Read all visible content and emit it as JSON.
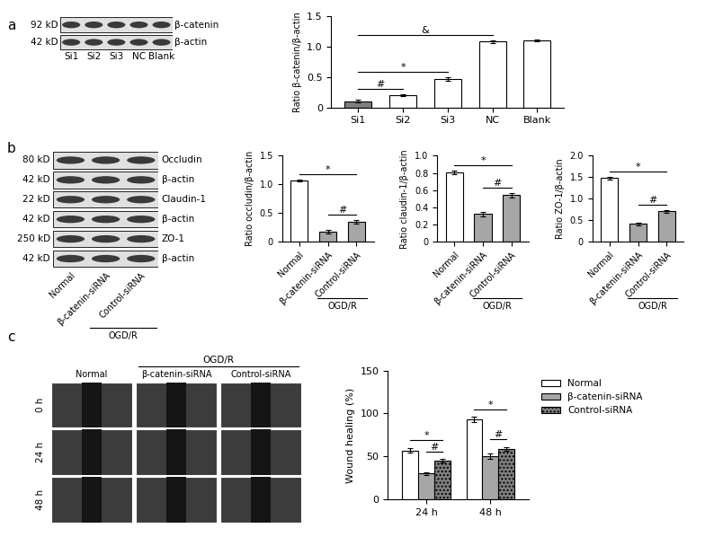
{
  "panel_labels": [
    "a",
    "b",
    "c"
  ],
  "blots": [
    {
      "lanes": [
        "Si1",
        "Si2",
        "Si3",
        "NC",
        "Blank"
      ],
      "rows": [
        {
          "size": "92 kD",
          "name": "β-catenin"
        },
        {
          "size": "42 kD",
          "name": "β-actin"
        }
      ]
    },
    {
      "lanes": [
        "Normal",
        "β-catenin-siRNA",
        "Control-siRNA"
      ],
      "group_label": {
        "text": "OGD/R",
        "lanes": [
          "β-catenin-siRNA",
          "Control-siRNA"
        ]
      },
      "rows": [
        {
          "size": "80 kD",
          "name": "Occludin"
        },
        {
          "size": "42 kD",
          "name": "β-actin"
        },
        {
          "size": "22 kD",
          "name": "Claudin-1"
        },
        {
          "size": "42 kD",
          "name": "β-actin"
        },
        {
          "size": "250 kD",
          "name": "ZO-1"
        },
        {
          "size": "42 kD",
          "name": "β-actin"
        }
      ]
    }
  ],
  "images": {
    "columns": [
      "Normal",
      "β-catenin-siRNA",
      "Control-siRNA"
    ],
    "group_label": {
      "text": "OGD/R",
      "columns": [
        "β-catenin-siRNA",
        "Control-siRNA"
      ]
    },
    "rows": [
      "0 h",
      "24 h",
      "48 h"
    ]
  },
  "chart_data": [
    {
      "type": "bar",
      "categories": [
        "Si1",
        "Si2",
        "Si3",
        "NC",
        "Blank"
      ],
      "values": [
        0.1,
        0.2,
        0.47,
        1.08,
        1.1
      ],
      "errors": [
        0.02,
        0.02,
        0.03,
        0.02,
        0.02
      ],
      "colors": [
        "#7f7f7f",
        "#ffffff",
        "#ffffff",
        "#ffffff",
        "#ffffff"
      ],
      "ylabel": "Ratio β-catenin/β-actin",
      "ylim": [
        0,
        1.5
      ],
      "yticks": [
        0,
        0.5,
        {
          "value": 1,
          "label": "1.0"
        },
        1.5
      ],
      "significance": [
        {
          "between": [
            "Si1",
            "Si2"
          ],
          "label": "#"
        },
        {
          "between": [
            "Si1",
            "Si3"
          ],
          "label": "*"
        },
        {
          "between": [
            "Si1",
            "NC"
          ],
          "label": "&"
        }
      ]
    },
    {
      "type": "bar",
      "categories": [
        "Normal",
        "β-catenin-siRNA",
        "Control-siRNA"
      ],
      "values": [
        1.07,
        0.17,
        0.35
      ],
      "errors": [
        0.02,
        0.03,
        0.03
      ],
      "colors": [
        "#ffffff",
        "#a6a6a6",
        "#a6a6a6"
      ],
      "ylabel": "Ratio occludin/β-actin",
      "ylim": [
        0,
        1.5
      ],
      "yticks": [
        0,
        0.5,
        {
          "value": 1,
          "label": "1.0"
        },
        1.5
      ],
      "group_label": {
        "text": "OGD/R",
        "categories": [
          "β-catenin-siRNA",
          "Control-siRNA"
        ]
      },
      "significance": [
        {
          "between": [
            "Normal",
            "Control-siRNA"
          ],
          "label": "*"
        },
        {
          "between": [
            "β-catenin-siRNA",
            "Control-siRNA"
          ],
          "label": "#"
        }
      ]
    },
    {
      "type": "bar",
      "categories": [
        "Normal",
        "β-catenin-siRNA",
        "Control-siRNA"
      ],
      "values": [
        0.81,
        0.32,
        0.54
      ],
      "errors": [
        0.02,
        0.03,
        0.03
      ],
      "colors": [
        "#ffffff",
        "#a6a6a6",
        "#a6a6a6"
      ],
      "ylabel": "Ratio claudin-1/β-actin",
      "ylim": [
        0,
        1.0
      ],
      "yticks": [
        0,
        0.2,
        0.4,
        0.6,
        0.8,
        {
          "value": 1,
          "label": "1.0"
        }
      ],
      "group_label": {
        "text": "OGD/R",
        "categories": [
          "β-catenin-siRNA",
          "Control-siRNA"
        ]
      },
      "significance": [
        {
          "between": [
            "Normal",
            "Control-siRNA"
          ],
          "label": "*"
        },
        {
          "between": [
            "β-catenin-siRNA",
            "Control-siRNA"
          ],
          "label": "#"
        }
      ]
    },
    {
      "type": "bar",
      "categories": [
        "Normal",
        "β-catenin-siRNA",
        "Control-siRNA"
      ],
      "values": [
        1.48,
        0.41,
        0.71
      ],
      "errors": [
        0.03,
        0.03,
        0.03
      ],
      "colors": [
        "#ffffff",
        "#a6a6a6",
        "#a6a6a6"
      ],
      "ylabel": "Ratio ZO-1/β-actin",
      "ylim": [
        0,
        2.0
      ],
      "yticks": [
        0,
        0.5,
        {
          "value": 1,
          "label": "1.0"
        },
        1.5,
        {
          "value": 2,
          "label": "2.0"
        }
      ],
      "group_label": {
        "text": "OGD/R",
        "categories": [
          "β-catenin-siRNA",
          "Control-siRNA"
        ]
      },
      "significance": [
        {
          "between": [
            "Normal",
            "Control-siRNA"
          ],
          "label": "*"
        },
        {
          "between": [
            "β-catenin-siRNA",
            "Control-siRNA"
          ],
          "label": "#"
        }
      ]
    },
    {
      "type": "grouped_bar",
      "categories": [
        "24 h",
        "48 h"
      ],
      "series": [
        {
          "name": "Normal",
          "color": "#ffffff",
          "values": [
            57,
            93
          ],
          "errors": [
            3,
            3
          ]
        },
        {
          "name": "β-catenin-siRNA",
          "color": "#a6a6a6",
          "values": [
            30,
            50
          ],
          "errors": [
            2,
            3
          ]
        },
        {
          "name": "Control-siRNA",
          "color": "#7f7f7f",
          "values": [
            45,
            59
          ],
          "errors": [
            2,
            2
          ]
        }
      ],
      "ylabel": "Wound healing (%)",
      "ylim": [
        0,
        150
      ],
      "yticks": [
        0,
        50,
        100,
        150
      ],
      "legend": "right",
      "significance": [
        {
          "category": "24 h",
          "between": [
            "Normal",
            "Control-siRNA"
          ],
          "label": "*"
        },
        {
          "category": "24 h",
          "between": [
            "β-catenin-siRNA",
            "Control-siRNA"
          ],
          "label": "#"
        },
        {
          "category": "48 h",
          "between": [
            "Normal",
            "Control-siRNA"
          ],
          "label": "*"
        },
        {
          "category": "48 h",
          "between": [
            "β-catenin-siRNA",
            "Control-siRNA"
          ],
          "label": "#"
        }
      ]
    }
  ]
}
